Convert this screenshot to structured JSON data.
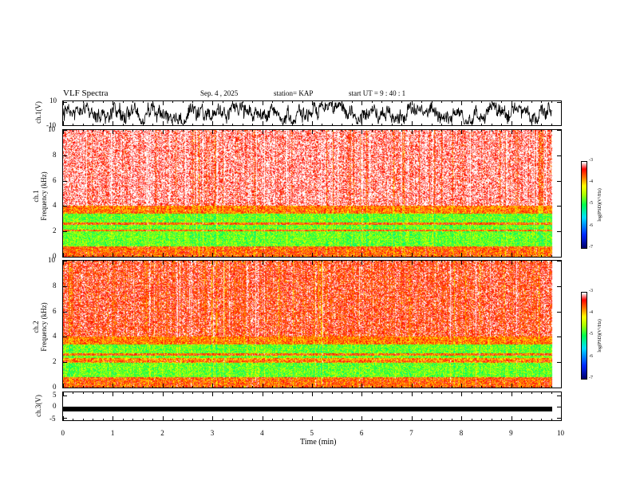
{
  "header": {
    "title": "VLF Spectra",
    "date": "Sep. 4 , 2025",
    "station": "station= KAP",
    "start": "start  UT =   9 : 40 : 1"
  },
  "chart_data": [
    {
      "type": "line",
      "title": "ch.1(V)",
      "ylabel": "ch.1(V)",
      "ylim": [
        -10,
        10
      ],
      "yticks": [
        "10",
        "-10"
      ],
      "description_values": "dense noisy waveform centered near 0"
    },
    {
      "type": "heatmap",
      "ylabel": "ch.1\nFrequency (kHz)",
      "ylabel_line1": "ch.1",
      "ylabel_line2": "Frequency (kHz)",
      "ylim": [
        0,
        10
      ],
      "yticks": [
        "0",
        "2",
        "4",
        "6",
        "8",
        "10"
      ],
      "colorbar": {
        "label": "log(PSD)(V^2/Hz)",
        "ticks": [
          "-3",
          "-4",
          "-5",
          "-6",
          "-7"
        ],
        "range": [
          -7,
          -3
        ]
      }
    },
    {
      "type": "heatmap",
      "ylabel": "ch.2\nFrequency (kHz)",
      "ylabel_line1": "ch.2",
      "ylabel_line2": "Frequency (kHz)",
      "ylim": [
        0,
        10
      ],
      "yticks": [
        "0",
        "2",
        "4",
        "6",
        "8",
        "10"
      ],
      "colorbar": {
        "label": "log(PSD)(V^2/Hz)",
        "ticks": [
          "-3",
          "-4",
          "-5",
          "-6",
          "-7"
        ],
        "range": [
          -7,
          -3
        ]
      }
    },
    {
      "type": "line",
      "ylabel": "ch.3(V)",
      "ylim": [
        -5,
        5
      ],
      "yticks": [
        "5",
        "0",
        "-5"
      ],
      "level": -1
    }
  ],
  "xaxis": {
    "label": "Time  (min)",
    "ticks": [
      "0",
      "1",
      "2",
      "3",
      "4",
      "5",
      "6",
      "7",
      "8",
      "9",
      "10"
    ],
    "range": [
      0,
      10
    ],
    "data_end": 9.83
  },
  "colorbar_label_text": "log(PSD)(V²/Hz)"
}
